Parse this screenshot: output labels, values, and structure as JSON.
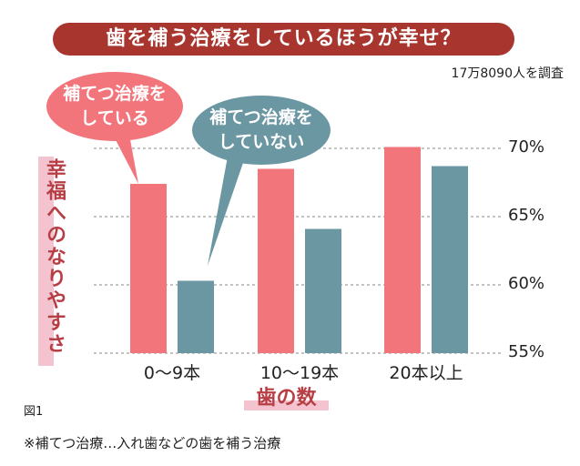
{
  "title": "歯を補う治療をしているほうが幸せ？",
  "survey_note": "17万8090人を調査",
  "figure_label": "図1",
  "footnote": "※補てつ治療…入れ歯などの歯を補う治療",
  "colors": {
    "banner": "#a8362e",
    "treated": "#f2757c",
    "untreated": "#6b97a3",
    "label_text": "#b83e45",
    "label_highlight": "#f3c4cf"
  },
  "chart_data": {
    "type": "bar",
    "title": "歯を補う治療をしているほうが幸せ？",
    "xlabel": "歯の数",
    "ylabel": "幸福へのなりやすさ",
    "categories": [
      "0〜9本",
      "10〜19本",
      "20本以上"
    ],
    "series": [
      {
        "name": "補てつ治療をしている",
        "values": [
          67.4,
          68.5,
          70.1
        ]
      },
      {
        "name": "補てつ治療をしていない",
        "values": [
          60.3,
          64.1,
          68.7
        ]
      }
    ],
    "ylim": [
      55,
      70
    ],
    "yticks": [
      70,
      65,
      60,
      55
    ],
    "ytick_labels": [
      "70%",
      "65%",
      "60%",
      "55%"
    ],
    "grid": true,
    "legend": [
      {
        "line1": "補てつ治療を",
        "line2": "している"
      },
      {
        "line1": "補てつ治療を",
        "line2": "していない"
      }
    ]
  }
}
